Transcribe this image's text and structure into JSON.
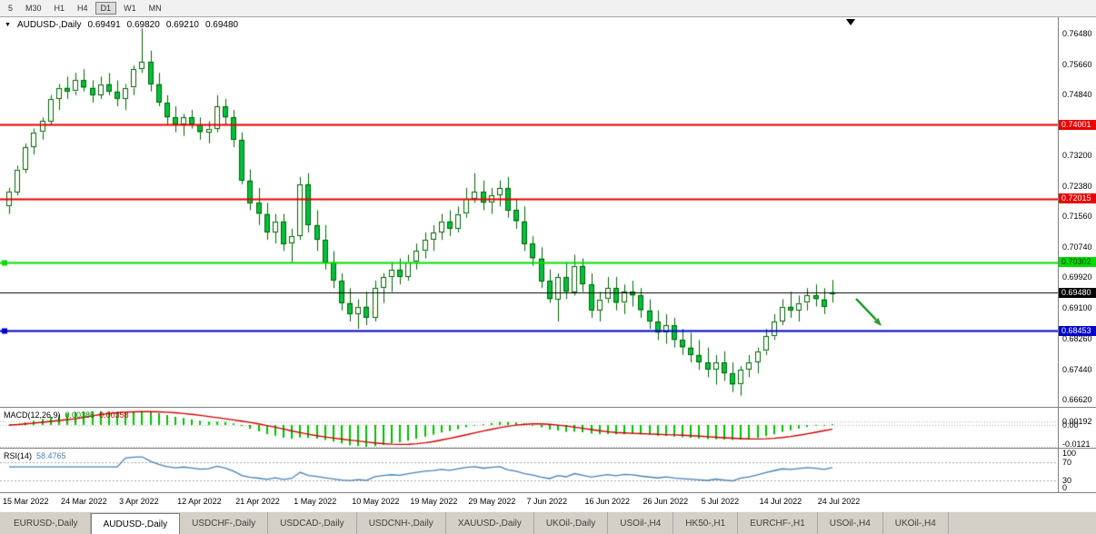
{
  "toolbar": {
    "periods": [
      {
        "label": "5",
        "active": false
      },
      {
        "label": "M30",
        "active": false
      },
      {
        "label": "H1",
        "active": false
      },
      {
        "label": "H4",
        "active": false
      },
      {
        "label": "D1",
        "active": true
      },
      {
        "label": "W1",
        "active": false
      },
      {
        "label": "MN",
        "active": false
      }
    ]
  },
  "header": {
    "dropdown_icon": "▼",
    "symbol": "AUDUSD-,Daily",
    "open": "0.69491",
    "high": "0.69820",
    "low": "0.69210",
    "close": "0.69480"
  },
  "chart_data": {
    "type": "candlestick",
    "symbol": "AUDUSD-",
    "timeframe": "Daily",
    "y_range": [
      0.664,
      0.769
    ],
    "y_ticks": [
      "0.76480",
      "0.75660",
      "0.74840",
      "0.74020",
      "0.73200",
      "0.72380",
      "0.71560",
      "0.70740",
      "0.69920",
      "0.69100",
      "0.68260",
      "0.67440",
      "0.66620"
    ],
    "x_labels": [
      "15 Mar 2022",
      "24 Mar 2022",
      "3 Apr 2022",
      "12 Apr 2022",
      "21 Apr 2022",
      "1 May 2022",
      "10 May 2022",
      "19 May 2022",
      "29 May 2022",
      "7 Jun 2022",
      "16 Jun 2022",
      "26 Jun 2022",
      "5 Jul 2022",
      "14 Jul 2022",
      "24 Jul 2022"
    ],
    "x_label_step": 7,
    "layout": {
      "candle_spacing": 9.15,
      "first_candle_x": 10,
      "body_width": 6
    },
    "colors": {
      "candle_border": "#006600",
      "candle_bull": "#ffffff",
      "candle_bear": "#00c040",
      "wick": "#006600",
      "background": "#ffffff"
    },
    "hlines": [
      {
        "price": 0.74001,
        "label": "0.74001",
        "color": "#e80000",
        "width": 2,
        "badge_bg": "#e80000",
        "badge_fg": "#ffffff",
        "marker": false
      },
      {
        "price": 0.72015,
        "label": "0.72015",
        "color": "#e80000",
        "width": 2,
        "badge_bg": "#e80000",
        "badge_fg": "#ffffff",
        "marker": false
      },
      {
        "price": 0.70302,
        "label": "0.70302",
        "color": "#00dd00",
        "width": 2,
        "badge_bg": "#00dd00",
        "badge_fg": "#003300",
        "marker": true
      },
      {
        "price": 0.6948,
        "label": "0.69480",
        "color": "#000000",
        "width": 1,
        "badge_bg": "#000000",
        "badge_fg": "#ffffff",
        "marker": false
      },
      {
        "price": 0.68453,
        "label": "0.68453",
        "color": "#0000cc",
        "width": 2,
        "badge_bg": "#0000cc",
        "badge_fg": "#ffffff",
        "marker": true
      }
    ],
    "annotation": {
      "type": "arrow-down-right",
      "color": "#2e9b2e"
    },
    "candles": [
      [
        0.718,
        0.723,
        0.716,
        0.722
      ],
      [
        0.722,
        0.729,
        0.721,
        0.728
      ],
      [
        0.728,
        0.735,
        0.727,
        0.734
      ],
      [
        0.734,
        0.739,
        0.732,
        0.738
      ],
      [
        0.738,
        0.742,
        0.736,
        0.741
      ],
      [
        0.741,
        0.748,
        0.74,
        0.747
      ],
      [
        0.747,
        0.751,
        0.744,
        0.75
      ],
      [
        0.75,
        0.753,
        0.747,
        0.749
      ],
      [
        0.749,
        0.754,
        0.748,
        0.752
      ],
      [
        0.752,
        0.755,
        0.749,
        0.75
      ],
      [
        0.75,
        0.752,
        0.746,
        0.748
      ],
      [
        0.748,
        0.753,
        0.747,
        0.751
      ],
      [
        0.751,
        0.754,
        0.748,
        0.749
      ],
      [
        0.749,
        0.752,
        0.745,
        0.747
      ],
      [
        0.747,
        0.751,
        0.744,
        0.75
      ],
      [
        0.75,
        0.756,
        0.748,
        0.755
      ],
      [
        0.755,
        0.766,
        0.754,
        0.757
      ],
      [
        0.757,
        0.76,
        0.749,
        0.751
      ],
      [
        0.751,
        0.754,
        0.745,
        0.746
      ],
      [
        0.746,
        0.748,
        0.74,
        0.742
      ],
      [
        0.742,
        0.745,
        0.738,
        0.74
      ],
      [
        0.74,
        0.743,
        0.737,
        0.742
      ],
      [
        0.742,
        0.744,
        0.739,
        0.74
      ],
      [
        0.74,
        0.742,
        0.736,
        0.738
      ],
      [
        0.738,
        0.741,
        0.735,
        0.739
      ],
      [
        0.739,
        0.748,
        0.738,
        0.745
      ],
      [
        0.745,
        0.747,
        0.74,
        0.742
      ],
      [
        0.742,
        0.744,
        0.734,
        0.736
      ],
      [
        0.736,
        0.738,
        0.724,
        0.725
      ],
      [
        0.725,
        0.728,
        0.717,
        0.719
      ],
      [
        0.719,
        0.723,
        0.713,
        0.716
      ],
      [
        0.716,
        0.719,
        0.709,
        0.711
      ],
      [
        0.711,
        0.716,
        0.708,
        0.714
      ],
      [
        0.714,
        0.716,
        0.706,
        0.708
      ],
      [
        0.708,
        0.712,
        0.703,
        0.71
      ],
      [
        0.71,
        0.726,
        0.709,
        0.724
      ],
      [
        0.724,
        0.727,
        0.711,
        0.713
      ],
      [
        0.713,
        0.717,
        0.706,
        0.709
      ],
      [
        0.709,
        0.713,
        0.701,
        0.703
      ],
      [
        0.703,
        0.706,
        0.696,
        0.698
      ],
      [
        0.698,
        0.7,
        0.69,
        0.692
      ],
      [
        0.692,
        0.696,
        0.687,
        0.689
      ],
      [
        0.689,
        0.693,
        0.685,
        0.691
      ],
      [
        0.691,
        0.695,
        0.686,
        0.688
      ],
      [
        0.688,
        0.698,
        0.687,
        0.696
      ],
      [
        0.696,
        0.7,
        0.692,
        0.699
      ],
      [
        0.699,
        0.703,
        0.695,
        0.701
      ],
      [
        0.701,
        0.704,
        0.697,
        0.699
      ],
      [
        0.699,
        0.705,
        0.698,
        0.703
      ],
      [
        0.703,
        0.708,
        0.701,
        0.706
      ],
      [
        0.706,
        0.711,
        0.704,
        0.709
      ],
      [
        0.709,
        0.713,
        0.706,
        0.711
      ],
      [
        0.711,
        0.716,
        0.709,
        0.714
      ],
      [
        0.714,
        0.717,
        0.71,
        0.712
      ],
      [
        0.712,
        0.718,
        0.711,
        0.716
      ],
      [
        0.716,
        0.723,
        0.715,
        0.72
      ],
      [
        0.72,
        0.727,
        0.719,
        0.722
      ],
      [
        0.722,
        0.725,
        0.717,
        0.719
      ],
      [
        0.719,
        0.723,
        0.716,
        0.721
      ],
      [
        0.721,
        0.725,
        0.718,
        0.723
      ],
      [
        0.723,
        0.726,
        0.715,
        0.717
      ],
      [
        0.717,
        0.72,
        0.712,
        0.714
      ],
      [
        0.714,
        0.718,
        0.706,
        0.708
      ],
      [
        0.708,
        0.71,
        0.702,
        0.704
      ],
      [
        0.704,
        0.707,
        0.696,
        0.698
      ],
      [
        0.698,
        0.701,
        0.692,
        0.693
      ],
      [
        0.693,
        0.7,
        0.687,
        0.699
      ],
      [
        0.699,
        0.703,
        0.693,
        0.695
      ],
      [
        0.695,
        0.705,
        0.694,
        0.702
      ],
      [
        0.702,
        0.704,
        0.695,
        0.697
      ],
      [
        0.697,
        0.7,
        0.688,
        0.69
      ],
      [
        0.69,
        0.695,
        0.687,
        0.693
      ],
      [
        0.693,
        0.699,
        0.692,
        0.696
      ],
      [
        0.696,
        0.699,
        0.69,
        0.692
      ],
      [
        0.692,
        0.697,
        0.689,
        0.695
      ],
      [
        0.695,
        0.698,
        0.691,
        0.694
      ],
      [
        0.694,
        0.696,
        0.688,
        0.69
      ],
      [
        0.69,
        0.693,
        0.685,
        0.687
      ],
      [
        0.687,
        0.69,
        0.682,
        0.684
      ],
      [
        0.684,
        0.689,
        0.681,
        0.686
      ],
      [
        0.686,
        0.688,
        0.68,
        0.682
      ],
      [
        0.682,
        0.685,
        0.678,
        0.68
      ],
      [
        0.68,
        0.684,
        0.676,
        0.678
      ],
      [
        0.678,
        0.682,
        0.674,
        0.676
      ],
      [
        0.676,
        0.68,
        0.672,
        0.674
      ],
      [
        0.674,
        0.678,
        0.67,
        0.676
      ],
      [
        0.676,
        0.679,
        0.671,
        0.673
      ],
      [
        0.673,
        0.676,
        0.668,
        0.67
      ],
      [
        0.67,
        0.675,
        0.667,
        0.674
      ],
      [
        0.674,
        0.678,
        0.672,
        0.676
      ],
      [
        0.676,
        0.68,
        0.673,
        0.679
      ],
      [
        0.679,
        0.685,
        0.678,
        0.683
      ],
      [
        0.683,
        0.689,
        0.682,
        0.687
      ],
      [
        0.687,
        0.693,
        0.686,
        0.691
      ],
      [
        0.691,
        0.695,
        0.688,
        0.69
      ],
      [
        0.69,
        0.694,
        0.687,
        0.692
      ],
      [
        0.692,
        0.696,
        0.69,
        0.694
      ],
      [
        0.694,
        0.697,
        0.691,
        0.693
      ],
      [
        0.693,
        0.696,
        0.689,
        0.691
      ],
      [
        0.6949,
        0.6982,
        0.6921,
        0.6948
      ]
    ]
  },
  "indicators": {
    "macd": {
      "label": "MACD(12,26,9)",
      "value": "0.00385",
      "signal_value": "0.00358",
      "axis_labels": [
        "0.00192",
        "0.00",
        "-0.0121"
      ],
      "histogram_color": "#00c000",
      "signal_color": "#d00000",
      "params": {
        "fast": 12,
        "slow": 26,
        "signal": 9
      }
    },
    "rsi": {
      "label": "RSI(14)",
      "value": "58.4765",
      "axis_labels": [
        "100",
        "70",
        "30",
        "0"
      ],
      "levels": [
        70,
        30
      ],
      "line_color": "#4682b4",
      "period": 14
    }
  },
  "tabbar": {
    "tabs": [
      {
        "label": "EURUSD-,Daily",
        "active": false
      },
      {
        "label": "AUDUSD-,Daily",
        "active": true
      },
      {
        "label": "USDCHF-,Daily",
        "active": false
      },
      {
        "label": "USDCAD-,Daily",
        "active": false
      },
      {
        "label": "USDCNH-,Daily",
        "active": false
      },
      {
        "label": "XAUUSD-,Daily",
        "active": false
      },
      {
        "label": "UKOil-,Daily",
        "active": false
      },
      {
        "label": "USOil-,H4",
        "active": false
      },
      {
        "label": "HK50-,H1",
        "active": false
      },
      {
        "label": "EURCHF-,H1",
        "active": false
      },
      {
        "label": "USOil-,H4",
        "active": false
      },
      {
        "label": "UKOil-,H4",
        "active": false
      }
    ]
  }
}
